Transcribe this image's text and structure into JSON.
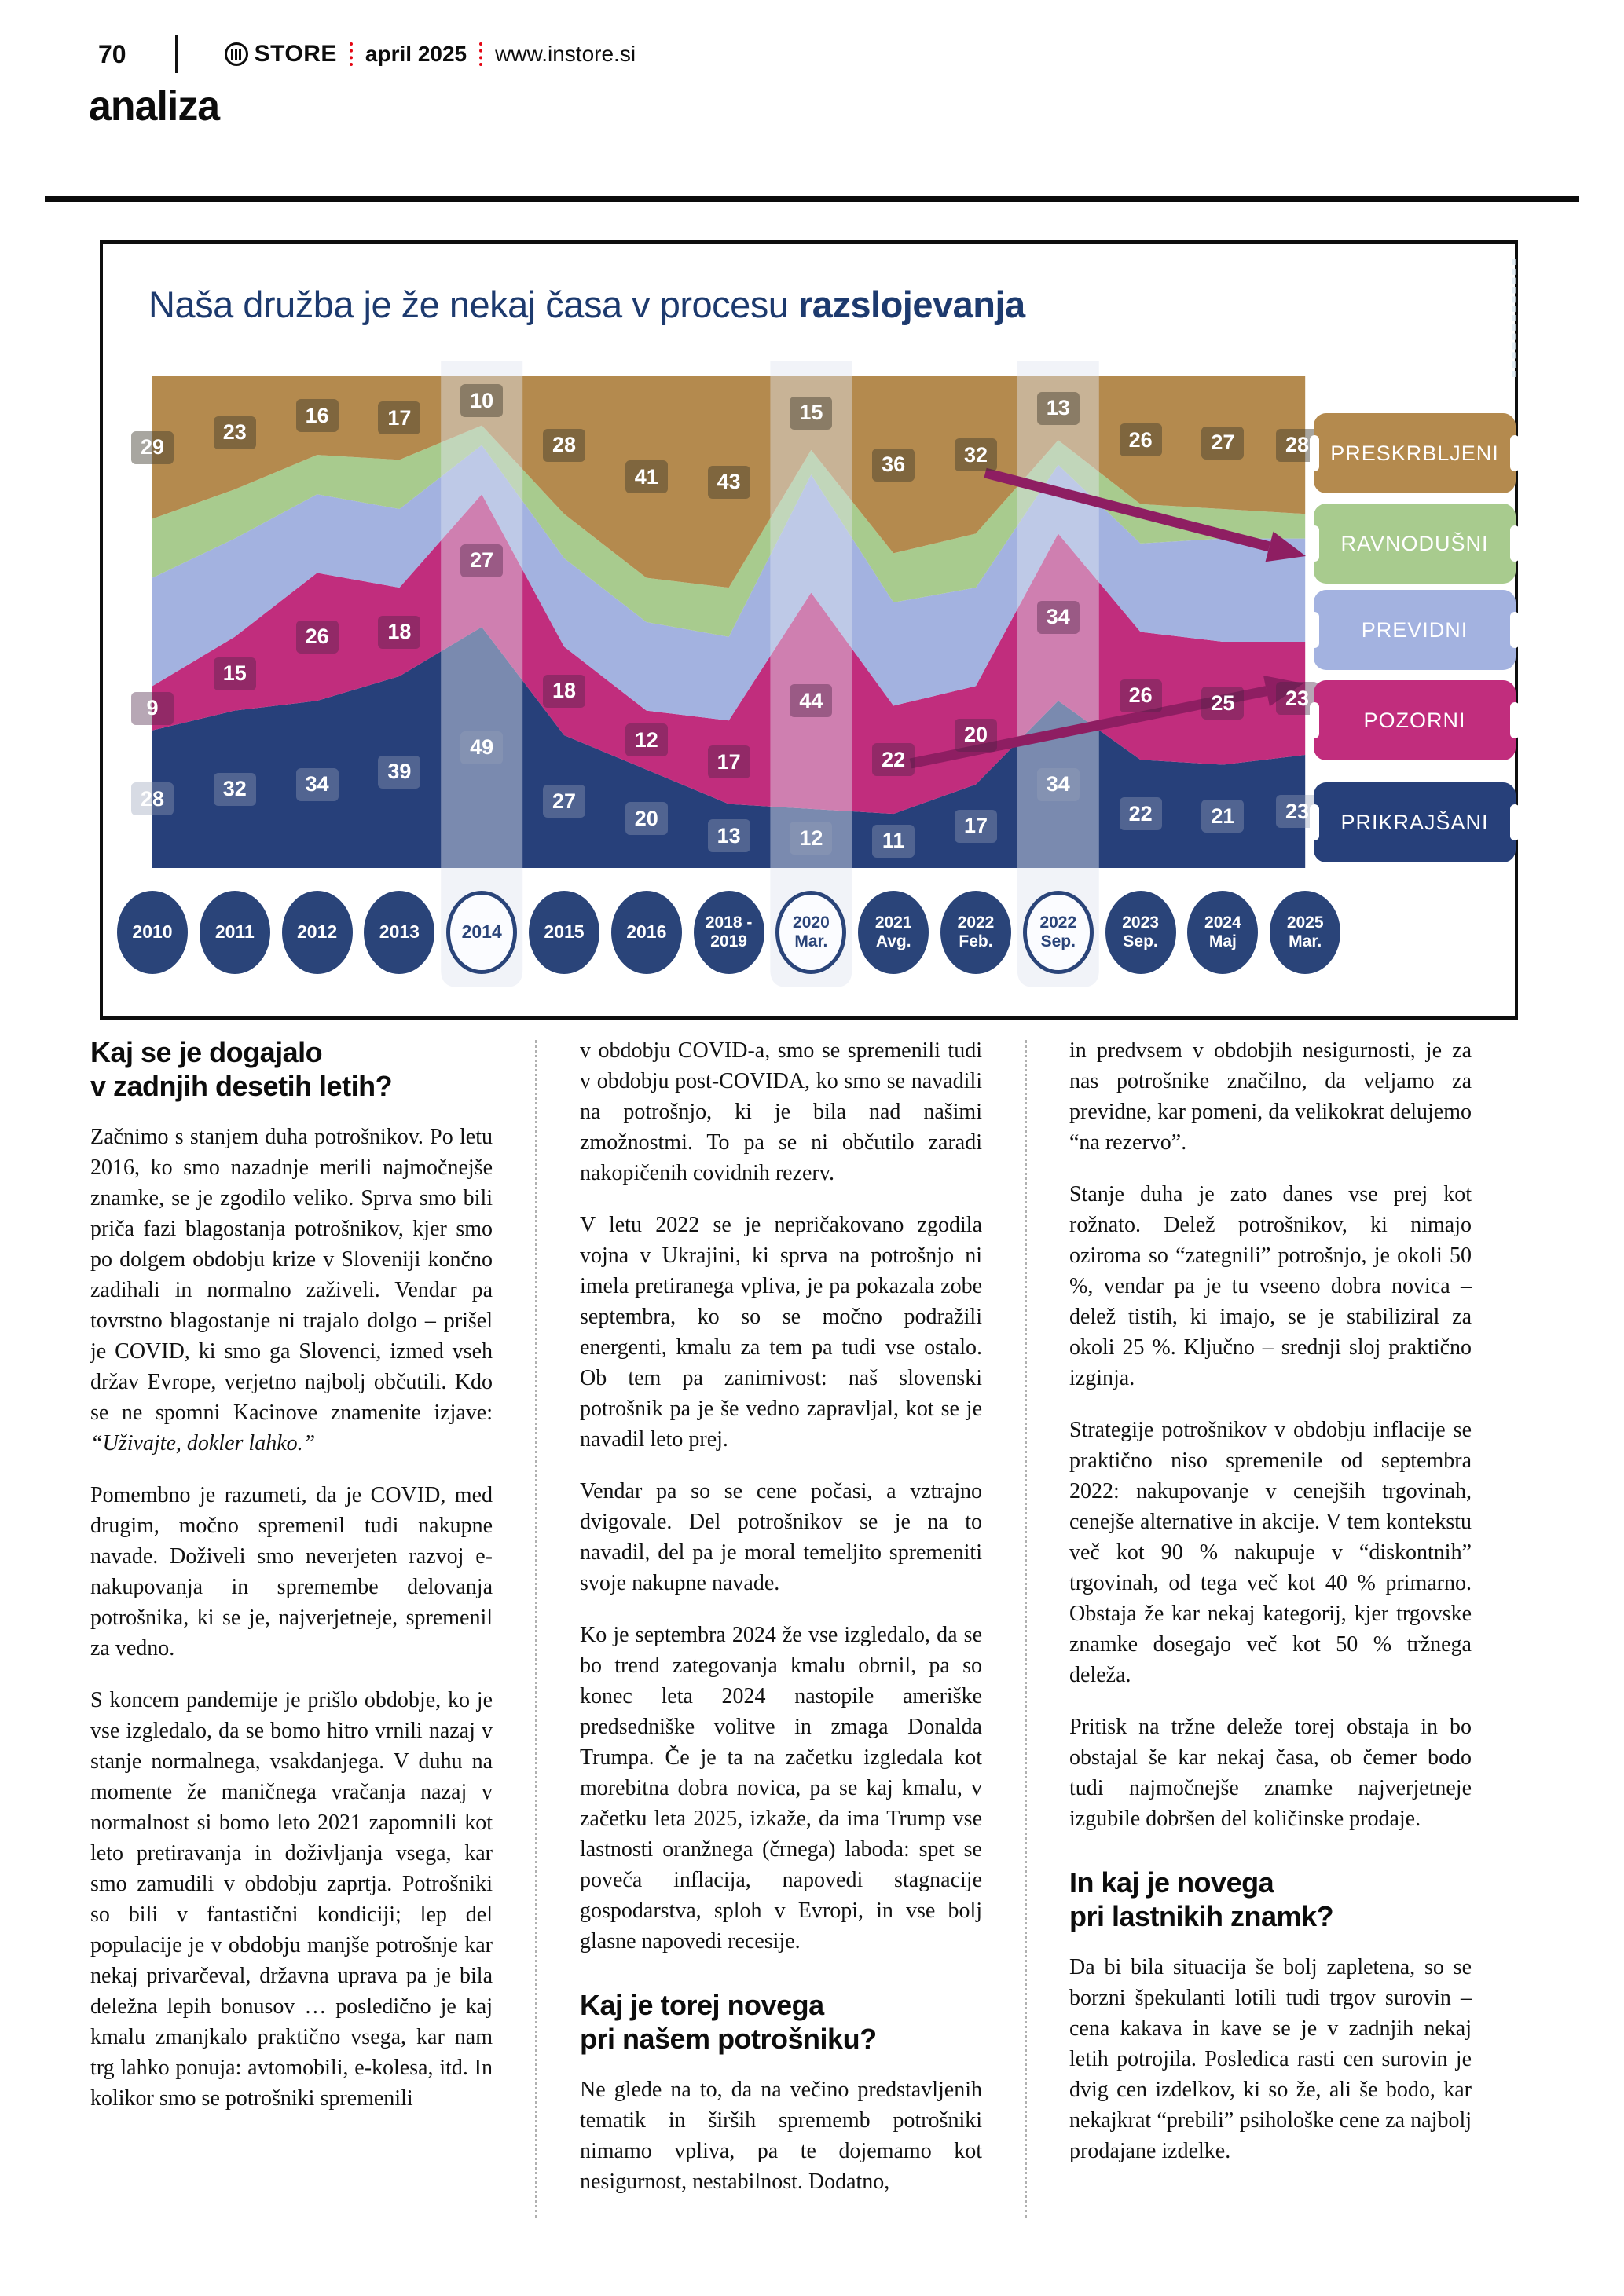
{
  "masthead": {
    "page_number": "70",
    "brand": "STORE",
    "issue": "april 2025",
    "site": "www.instore.si",
    "section": "analiza"
  },
  "chart": {
    "title_regular": "Naša družba je že nekaj časa v procesu ",
    "title_bold": "razslojevanja"
  },
  "chart_data": {
    "type": "area",
    "subtype": "stacked-100-percent",
    "title": "Naša družba je že nekaj časa v procesu razslojevanja",
    "xlabel": "",
    "ylabel": "",
    "ylim": [
      0,
      100
    ],
    "grid": false,
    "legend_position": "right",
    "categories": [
      "2010",
      "2011",
      "2012",
      "2013",
      "2014",
      "2015",
      "2016",
      "2018 - 2019",
      "2020 Mar.",
      "2021 Avg.",
      "2022 Feb.",
      "2022 Sep.",
      "2023 Sep.",
      "2024 Maj",
      "2025 Mar."
    ],
    "category_lines": [
      [
        "2010"
      ],
      [
        "2011"
      ],
      [
        "2012"
      ],
      [
        "2013"
      ],
      [
        "2014"
      ],
      [
        "2015"
      ],
      [
        "2016"
      ],
      [
        "2018 -",
        "2019"
      ],
      [
        "2020",
        "Mar."
      ],
      [
        "2021",
        "Avg."
      ],
      [
        "2022",
        "Feb."
      ],
      [
        "2022",
        "Sep."
      ],
      [
        "2023",
        "Sep."
      ],
      [
        "2024",
        "Maj"
      ],
      [
        "2025",
        "Mar."
      ]
    ],
    "highlighted_category_indexes": [
      4,
      8,
      11
    ],
    "series": [
      {
        "name": "PRESKRBLJENI",
        "color": "#b48a4e",
        "chip_color": "rgba(62,58,44,0.45)",
        "labels_shown": true,
        "estimated": false,
        "values": [
          29,
          23,
          16,
          17,
          10,
          28,
          41,
          43,
          15,
          36,
          32,
          13,
          26,
          27,
          28
        ]
      },
      {
        "name": "RAVNODUŠNI",
        "color": "#a8cb8e",
        "chip_color": "rgba(62,58,44,0.45)",
        "labels_shown": false,
        "estimated": true,
        "values": [
          12,
          10,
          8,
          10,
          4,
          9,
          9,
          10,
          5,
          10,
          11,
          5,
          8,
          6,
          5
        ]
      },
      {
        "name": "PREVIDNI",
        "color": "#a3b2e0",
        "chip_color": "rgba(62,58,44,0.45)",
        "labels_shown": false,
        "estimated": true,
        "values": [
          22,
          20,
          16,
          16,
          10,
          18,
          18,
          17,
          24,
          21,
          20,
          14,
          18,
          21,
          21
        ]
      },
      {
        "name": "POZORNI",
        "color": "#c12d7d",
        "chip_color": "rgba(75,35,70,0.40)",
        "labels_shown": true,
        "estimated": false,
        "values": [
          9,
          15,
          26,
          18,
          27,
          18,
          12,
          17,
          44,
          22,
          20,
          34,
          26,
          25,
          23
        ]
      },
      {
        "name": "PRIKRAJŠANI",
        "color": "#27407a",
        "chip_color": "rgba(150,160,185,0.38)",
        "labels_shown": true,
        "estimated": false,
        "values": [
          28,
          32,
          34,
          39,
          49,
          27,
          20,
          13,
          12,
          11,
          17,
          34,
          22,
          21,
          23
        ]
      }
    ],
    "annotations": [
      {
        "type": "arrow",
        "color": "#8e1e62",
        "note": "trend arrow pointing to RAVNODUŠNI legend"
      },
      {
        "type": "arrow",
        "color": "#8e1e62",
        "note": "trend arrow pointing to POZORNI legend"
      }
    ]
  },
  "columns": [
    {
      "blocks": [
        {
          "type": "heading",
          "mid": false,
          "lines": [
            "Kaj se je dogajalo",
            "v zadnjih desetih letih?"
          ]
        },
        {
          "type": "para",
          "runs": [
            {
              "t": "Začnimo s stanjem duha potrošnikov. Po letu 2016, ko smo nazadnje merili najmočnejše znamke, se je zgodilo veliko. Sprva smo bili priča fazi blagostanja potrošnikov, kjer smo po dolgem obdobju krize v Sloveniji končno zadihali in normalno zaživeli. Vendar pa tovrstno blagostanje ni trajalo dolgo – prišel je COVID, ki smo ga Slovenci, izmed vseh držav Evrope, verjetno najbolj občutili. Kdo se ne spomni Kacinove znamenite izjave: ",
              "i": false
            },
            {
              "t": "“Uživajte, dokler lahko.”",
              "i": true
            }
          ]
        },
        {
          "type": "para",
          "runs": [
            {
              "t": "Pomembno je razumeti, da je COVID, med drugim, močno spremenil tudi nakupne navade. Doživeli smo neverjeten razvoj e-nakupovanja in spremembe delovanja potrošnika, ki se je, najverjetneje, spremenil za vedno.",
              "i": false
            }
          ]
        },
        {
          "type": "para",
          "runs": [
            {
              "t": "S koncem pandemije je prišlo obdobje, ko je vse izgledalo, da se bomo hitro vrnili nazaj v stanje normalnega, vsakdanjega. V duhu na momente že maničnega vračanja nazaj v normalnost si bomo leto 2021 zapomnili kot leto pretiravanja in doživljanja vsega, kar smo zamudili v obdobju zaprtja. Potrošniki so bili v fantastični kondiciji; lep del populacije je v obdobju manjše potrošnje kar nekaj privarčeval, državna uprava pa je bila deležna lepih bonusov … posledično je kaj kmalu zmanjkalo praktično vsega, kar nam trg lahko ponuja: avtomobili, e-kolesa, itd. In kolikor smo se potrošniki spremenili",
              "i": false
            }
          ]
        }
      ]
    },
    {
      "blocks": [
        {
          "type": "para",
          "runs": [
            {
              "t": "v obdobju COVID-a, smo se spremenili tudi v obdobju post-COVIDA, ko smo se navadili na potrošnjo, ki je bila nad našimi zmožnostmi. To pa se ni občutilo zaradi nakopičenih covidnih rezerv.",
              "i": false
            }
          ]
        },
        {
          "type": "para",
          "runs": [
            {
              "t": "V letu 2022 se je nepričakovano zgodila vojna v Ukrajini, ki sprva na potrošnjo ni imela pretiranega vpliva, je pa pokazala zobe septembra, ko so se močno podražili energenti, kmalu za tem pa tudi vse ostalo. Ob tem pa zanimivost: naš slovenski potrošnik pa je še vedno zapravljal, kot se je navadil leto prej.",
              "i": false
            }
          ]
        },
        {
          "type": "para",
          "runs": [
            {
              "t": "Vendar pa so se cene počasi, a vztrajno dvigovale. Del potrošnikov se je na to navadil, del pa je moral temeljito spremeniti svoje nakupne navade.",
              "i": false
            }
          ]
        },
        {
          "type": "para",
          "runs": [
            {
              "t": "Ko je septembra 2024 že vse izgledalo, da se bo trend zategovanja kmalu obrnil, pa so konec leta 2024 nastopile ameriške predsedniške volitve in zmaga Donalda Trumpa. Če je ta na začetku izgledala kot morebitna dobra novica, pa se kaj kmalu, v začetku leta 2025, izkaže, da ima Trump vse lastnosti oranžnega (črnega) laboda: spet se poveča inflacija, napovedi stagnacije gospodarstva, sploh v Evropi, in vse bolj glasne napovedi recesije.",
              "i": false
            }
          ]
        },
        {
          "type": "heading",
          "mid": true,
          "lines": [
            "Kaj je torej novega",
            "pri našem potrošniku?"
          ]
        },
        {
          "type": "para",
          "runs": [
            {
              "t": "Ne glede na to, da na večino predstavljenih tematik in širših sprememb potrošniki nimamo vpliva, pa te dojemamo kot nesigurnost, nestabilnost. Dodatno,",
              "i": false
            }
          ]
        }
      ]
    },
    {
      "blocks": [
        {
          "type": "para",
          "runs": [
            {
              "t": "in predvsem v obdobjih nesigurnosti, je za nas potrošnike značilno, da veljamo za previdne, kar pomeni, da velikokrat delujemo “na rezervo”.",
              "i": false
            }
          ]
        },
        {
          "type": "para",
          "runs": [
            {
              "t": "Stanje duha je zato danes vse prej kot rožnato. Delež potrošnikov, ki nimajo oziroma so “zategnili” potrošnjo, je okoli 50 %, vendar pa je tu vseeno dobra novica – delež tistih, ki imajo, se je stabiliziral za okoli 25 %. Ključno – srednji sloj praktično izginja.",
              "i": false
            }
          ]
        },
        {
          "type": "para",
          "runs": [
            {
              "t": "Strategije potrošnikov v obdobju inflacije se praktično niso spremenile od septembra 2022: nakupovanje v cenejših trgovinah, cenejše alternative in akcije. V tem kontekstu več kot 90 % nakupuje v “diskontnih” trgovinah, od tega več kot 40 % primarno. Obstaja že kar nekaj kategorij, kjer trgovske znamke dosegajo več kot 50 % tržnega deleža.",
              "i": false
            }
          ]
        },
        {
          "type": "para",
          "runs": [
            {
              "t": "Pritisk na tržne deleže torej obstaja in bo obstajal še kar nekaj časa, ob čemer bodo tudi najmočnejše znamke najverjetneje izgubile dobršen del količinske prodaje.",
              "i": false
            }
          ]
        },
        {
          "type": "heading",
          "mid": true,
          "lines": [
            "In kaj je novega",
            "pri lastnikih znamk?"
          ]
        },
        {
          "type": "para",
          "runs": [
            {
              "t": "Da bi bila situacija še bolj zapletena, so se borzni špekulanti lotili tudi trgov surovin – cena kakava in kave se je v zadnjih nekaj letih potrojila. Posledica rasti cen surovin je dvig cen izdelkov, ki so že, ali še bodo, kar nekajkrat “prebili” psihološke cene za najbolj prodajane izdelke.",
              "i": false
            }
          ]
        }
      ]
    }
  ]
}
